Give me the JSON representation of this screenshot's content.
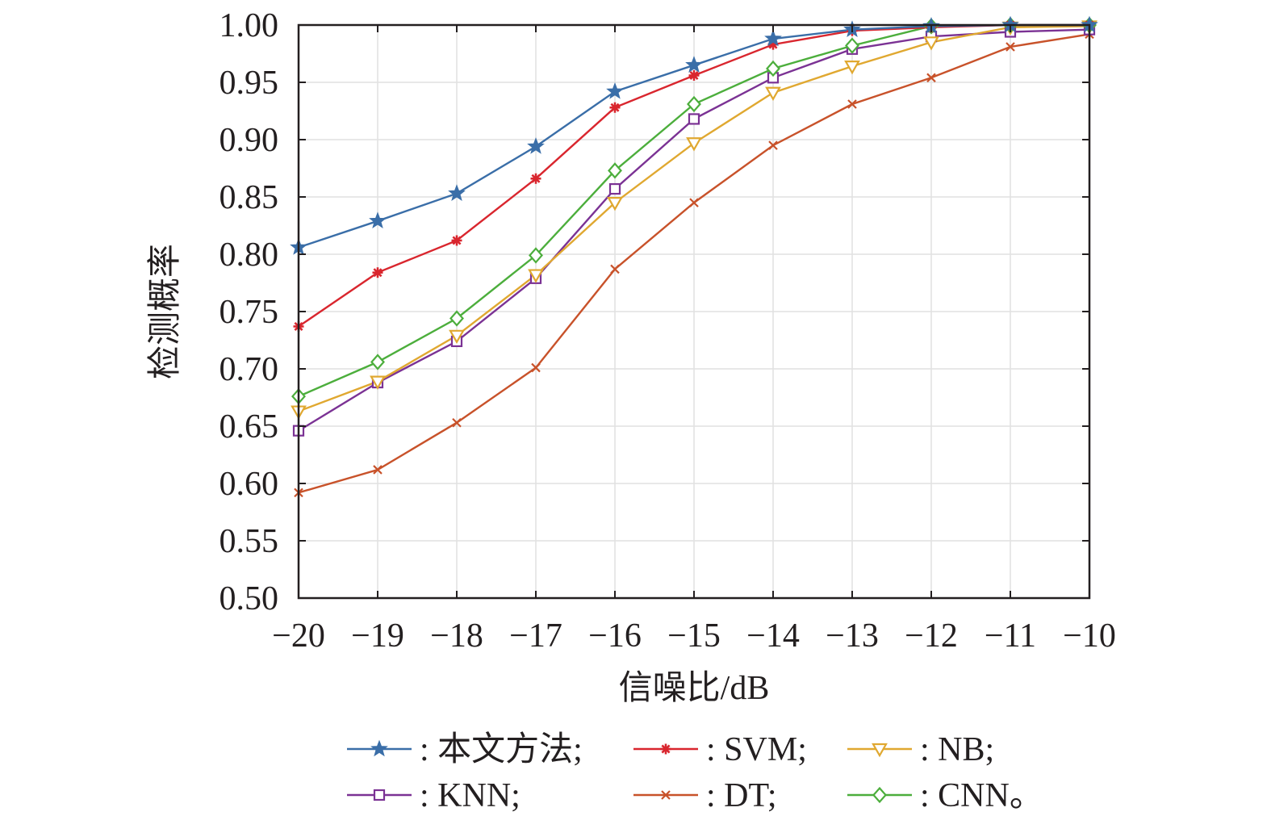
{
  "chart_data": {
    "type": "line",
    "title": "",
    "xlabel": "信噪比/dB",
    "ylabel": "检测概率",
    "x": [
      -20,
      -19,
      -18,
      -17,
      -16,
      -15,
      -14,
      -13,
      -12,
      -11,
      -10
    ],
    "x_tick_labels": [
      "−20",
      "−19",
      "−18",
      "−17",
      "−16",
      "−15",
      "−14",
      "−13",
      "−12",
      "−11",
      "−10"
    ],
    "xlim": [
      -20,
      -10
    ],
    "ylim": [
      0.5,
      1.0
    ],
    "y_ticks": [
      0.5,
      0.55,
      0.6,
      0.65,
      0.7,
      0.75,
      0.8,
      0.85,
      0.9,
      0.95,
      1.0
    ],
    "y_tick_labels": [
      "0.50",
      "0.55",
      "0.60",
      "0.65",
      "0.70",
      "0.75",
      "0.80",
      "0.85",
      "0.90",
      "0.95",
      "1.00"
    ],
    "grid": true,
    "legend_position": "bottom",
    "series": [
      {
        "name": "本文方法",
        "legend_label": ": 本文方法;",
        "color": "#3a6ea8",
        "marker": "star",
        "values": [
          0.806,
          0.829,
          0.853,
          0.894,
          0.942,
          0.965,
          0.988,
          0.996,
          0.999,
          1.0,
          1.0
        ]
      },
      {
        "name": "SVM",
        "legend_label": ": SVM;",
        "color": "#d9262e",
        "marker": "asterisk",
        "values": [
          0.737,
          0.784,
          0.812,
          0.866,
          0.928,
          0.956,
          0.983,
          0.995,
          0.998,
          1.0,
          1.0
        ]
      },
      {
        "name": "NB",
        "legend_label": ": NB;",
        "color": "#e0a830",
        "marker": "triangle-down",
        "values": [
          0.663,
          0.689,
          0.729,
          0.782,
          0.845,
          0.897,
          0.941,
          0.964,
          0.985,
          0.998,
          0.999
        ]
      },
      {
        "name": "KNN",
        "legend_label": ": KNN;",
        "color": "#7b3294",
        "marker": "square",
        "values": [
          0.646,
          0.688,
          0.724,
          0.779,
          0.857,
          0.918,
          0.954,
          0.979,
          0.99,
          0.994,
          0.996
        ]
      },
      {
        "name": "DT",
        "legend_label": ": DT;",
        "color": "#c8522a",
        "marker": "x",
        "values": [
          0.592,
          0.612,
          0.653,
          0.701,
          0.787,
          0.845,
          0.895,
          0.931,
          0.954,
          0.981,
          0.992
        ]
      },
      {
        "name": "CNN",
        "legend_label": ": CNN。",
        "color": "#4cae3c",
        "marker": "diamond",
        "values": [
          0.676,
          0.706,
          0.744,
          0.799,
          0.873,
          0.931,
          0.962,
          0.982,
          0.999,
          1.0,
          1.0
        ]
      }
    ]
  }
}
